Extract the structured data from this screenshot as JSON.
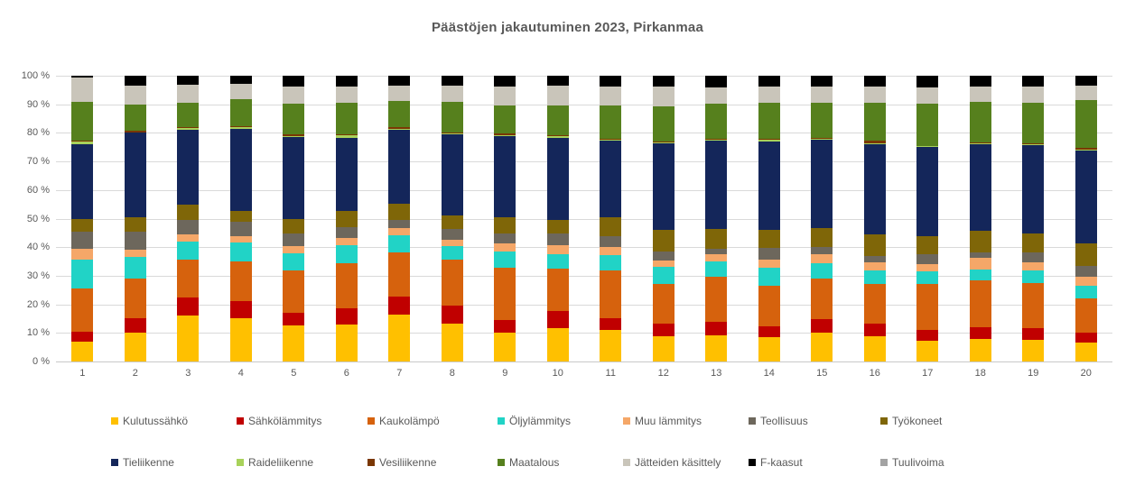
{
  "chart_data": {
    "type": "bar",
    "subtype": "stacked-100-percent-columns",
    "title": "Päästöjen jakautuminen 2023, Pirkanmaa",
    "xlabel": "",
    "ylabel": "",
    "ylim": [
      0,
      100
    ],
    "grid": true,
    "legend_position": "bottom",
    "y_ticks": [
      "100 %",
      "90 %",
      "80 %",
      "70 %",
      "60 %",
      "50 %",
      "40 %",
      "30 %",
      "20 %",
      "10 %",
      "0 %"
    ],
    "categories": [
      "1",
      "2",
      "3",
      "4",
      "5",
      "6",
      "7",
      "8",
      "9",
      "10",
      "11",
      "12",
      "13",
      "14",
      "15",
      "16",
      "17",
      "18",
      "19",
      "20"
    ],
    "series": [
      {
        "name": "Kulutussähkö",
        "color": "#FFC000",
        "values": [
          7,
          10,
          16,
          15,
          12.5,
          13,
          16.3,
          13.1,
          10,
          11.6,
          11,
          8.9,
          9.3,
          8.5,
          10,
          8.7,
          7.2,
          7.8,
          7.7,
          6.5
        ]
      },
      {
        "name": "Sähkölämmitys",
        "color": "#C00000",
        "values": [
          3.5,
          5,
          6.5,
          6,
          4.5,
          5.5,
          6.3,
          6.6,
          4.5,
          6.1,
          4.2,
          4.2,
          4.5,
          3.9,
          4.8,
          4.4,
          3.9,
          4.2,
          4,
          3.5
        ]
      },
      {
        "name": "Kaukolämpö",
        "color": "#D6620D",
        "values": [
          15,
          14,
          13,
          14,
          15,
          16,
          15.6,
          15.8,
          18.2,
          14.7,
          16.8,
          14,
          15.8,
          14,
          14.1,
          14,
          16.1,
          16.4,
          15.8,
          12
        ]
      },
      {
        "name": "Öljylämmitys",
        "color": "#21D3C6",
        "values": [
          10,
          7.5,
          6.5,
          6.5,
          6,
          6.3,
          6.1,
          4.9,
          5.7,
          5.3,
          5.3,
          6,
          5.3,
          6.3,
          5.6,
          4.9,
          4.5,
          3.9,
          4.4,
          4.6
        ]
      },
      {
        "name": "Muu lämmitys",
        "color": "#F5A768",
        "values": [
          4,
          2.5,
          2.5,
          2.3,
          2.3,
          2.5,
          2.5,
          2.1,
          2.9,
          2.9,
          2.9,
          2.1,
          2.5,
          2.8,
          3.2,
          2.7,
          2.5,
          3.9,
          2.9,
          3.2
        ]
      },
      {
        "name": "Teollisuus",
        "color": "#6D675C",
        "values": [
          6,
          6.5,
          5,
          5,
          4.5,
          3.8,
          2.7,
          4,
          3.4,
          4.2,
          3.7,
          3.2,
          2.1,
          4.2,
          2.4,
          2.3,
          3.2,
          2.1,
          3.4,
          3.8
        ]
      },
      {
        "name": "Työkoneet",
        "color": "#7F6608",
        "values": [
          4.5,
          5,
          5.5,
          4,
          5.2,
          5.5,
          5.7,
          4.5,
          5.8,
          4.8,
          6.6,
          7.7,
          6.9,
          6.4,
          6.5,
          7.6,
          6.6,
          7.4,
          6.5,
          7.8
        ]
      },
      {
        "name": "Tieliikenne",
        "color": "#14265A",
        "values": [
          26,
          29.5,
          26,
          28.5,
          28.5,
          25.8,
          25.9,
          28.4,
          28.5,
          28.8,
          26.7,
          30.2,
          30.9,
          30.8,
          31,
          31.6,
          31,
          30.3,
          31.1,
          32.5
        ]
      },
      {
        "name": "Raideliikenne",
        "color": "#A8D25A",
        "values": [
          1,
          0.3,
          0.8,
          0.7,
          0.4,
          0.8,
          0.2,
          0.4,
          0.3,
          0.6,
          0.4,
          0.3,
          0.3,
          0.7,
          0.3,
          0.3,
          0.3,
          0.3,
          0.3,
          0.3
        ]
      },
      {
        "name": "Vesiliikenne",
        "color": "#7A3703",
        "values": [
          0.3,
          0.5,
          0.3,
          0.3,
          0.5,
          0.3,
          0.7,
          0.3,
          0.4,
          0.3,
          0.3,
          0.5,
          0.3,
          0.2,
          0.4,
          0.7,
          0.2,
          0.5,
          0.4,
          0.7
        ]
      },
      {
        "name": "Maatalous",
        "color": "#56801D",
        "values": [
          13.5,
          9.2,
          8.4,
          9.5,
          11,
          11,
          9.1,
          10.7,
          9.8,
          10.2,
          11.6,
          12.1,
          12.3,
          12.7,
          12.4,
          13.5,
          14.7,
          14.1,
          14.2,
          16.6
        ]
      },
      {
        "name": "Jätteiden käsittely",
        "color": "#C9C5BA",
        "values": [
          8.7,
          6.5,
          6.5,
          5.5,
          6,
          5.8,
          5.5,
          5.7,
          6.7,
          7,
          6.8,
          7,
          5.8,
          5.7,
          5.5,
          5.5,
          5.8,
          5.3,
          5.5,
          5
        ]
      },
      {
        "name": "F-kaasut",
        "color": "#000000",
        "values": [
          0.5,
          3.5,
          3,
          2.7,
          3.6,
          3.7,
          3.4,
          3.5,
          3.8,
          3.5,
          3.7,
          3.8,
          4,
          3.8,
          3.8,
          3.8,
          4,
          3.8,
          3.8,
          3.5
        ]
      },
      {
        "name": "Tuulivoima",
        "color": "#A3A3A3",
        "values": [
          0,
          0,
          0,
          0,
          0,
          0,
          0,
          0,
          0,
          0,
          0,
          0,
          0,
          0,
          0,
          0,
          0,
          0,
          0,
          0
        ]
      }
    ],
    "colors": {
      "title_text": "#595959",
      "axis_text": "#595959",
      "legend_text": "#595959",
      "gridline": "#D9D9D9",
      "background": "#FFFFFF"
    }
  }
}
